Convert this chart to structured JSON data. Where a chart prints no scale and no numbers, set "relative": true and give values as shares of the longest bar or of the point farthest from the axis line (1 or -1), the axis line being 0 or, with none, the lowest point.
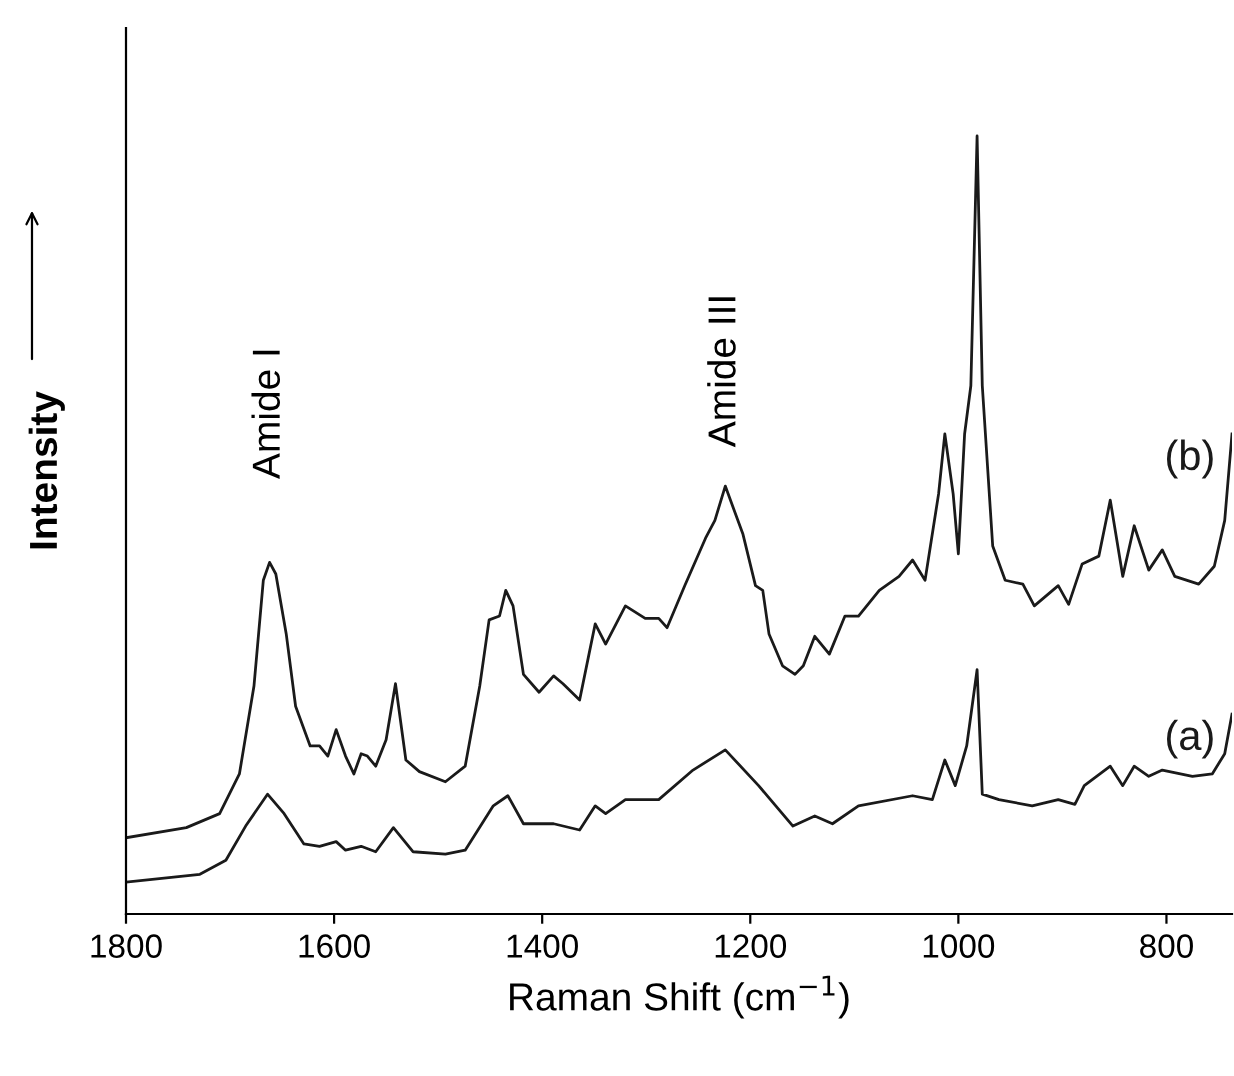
{
  "chart_data": {
    "type": "line",
    "relative": true,
    "xlabel": "Raman Shift (cm$^{−1}$)",
    "ylabel": "Intensity",
    "xlim": [
      1800,
      737
    ],
    "xticks": [
      1800,
      1600,
      1400,
      1200,
      1000,
      800
    ],
    "grid": false,
    "legend": false,
    "marker": "none",
    "line_style": "solid",
    "annotations": [
      {
        "text": "Amide I",
        "x": 1662,
        "y": 0.452
      },
      {
        "text": "Amide III",
        "x": 1224,
        "y": 0.55
      }
    ],
    "series": [
      {
        "name": "(b)",
        "color": "#1a1a1a",
        "x": [
          1800,
          1742,
          1710,
          1691,
          1677,
          1668,
          1662,
          1656,
          1646,
          1637,
          1623,
          1614,
          1606,
          1598,
          1589,
          1581,
          1574,
          1568,
          1560,
          1550,
          1541,
          1531,
          1518,
          1493,
          1474,
          1460,
          1451,
          1441,
          1435,
          1428,
          1418,
          1403,
          1389,
          1380,
          1364,
          1355,
          1349,
          1339,
          1320,
          1301,
          1288,
          1280,
          1263,
          1243,
          1234,
          1224,
          1207,
          1195,
          1188,
          1182,
          1169,
          1157,
          1149,
          1138,
          1124,
          1109,
          1096,
          1076,
          1057,
          1044,
          1032,
          1019,
          1013,
          1005,
          1000,
          994,
          988,
          982,
          977,
          967,
          955,
          938,
          927,
          904,
          894,
          881,
          865,
          854,
          842,
          831,
          817,
          804,
          792,
          769,
          754,
          744,
          737
        ],
        "values": [
          0.098,
          0.111,
          0.129,
          0.18,
          0.293,
          0.429,
          0.452,
          0.437,
          0.36,
          0.267,
          0.216,
          0.216,
          0.203,
          0.237,
          0.203,
          0.18,
          0.206,
          0.203,
          0.19,
          0.224,
          0.296,
          0.198,
          0.183,
          0.17,
          0.19,
          0.293,
          0.378,
          0.383,
          0.416,
          0.396,
          0.308,
          0.285,
          0.306,
          0.296,
          0.275,
          0.334,
          0.373,
          0.347,
          0.396,
          0.38,
          0.38,
          0.368,
          0.422,
          0.483,
          0.506,
          0.55,
          0.488,
          0.422,
          0.416,
          0.36,
          0.319,
          0.308,
          0.319,
          0.357,
          0.334,
          0.383,
          0.383,
          0.416,
          0.434,
          0.455,
          0.429,
          0.54,
          0.617,
          0.54,
          0.463,
          0.617,
          0.679,
          1,
          0.679,
          0.473,
          0.429,
          0.424,
          0.396,
          0.422,
          0.398,
          0.45,
          0.46,
          0.532,
          0.434,
          0.499,
          0.442,
          0.468,
          0.434,
          0.424,
          0.447,
          0.506,
          0.617
        ]
      },
      {
        "name": "(a)",
        "color": "#1a1a1a",
        "x": [
          1800,
          1729,
          1704,
          1685,
          1664,
          1648,
          1629,
          1614,
          1598,
          1589,
          1574,
          1560,
          1543,
          1524,
          1493,
          1474,
          1447,
          1433,
          1418,
          1389,
          1364,
          1349,
          1339,
          1320,
          1288,
          1255,
          1224,
          1192,
          1159,
          1138,
          1121,
          1096,
          1044,
          1025,
          1013,
          1003,
          992,
          982,
          977,
          961,
          929,
          904,
          888,
          879,
          854,
          842,
          831,
          817,
          804,
          775,
          756,
          744,
          737
        ],
        "values": [
          0.041,
          0.051,
          0.069,
          0.113,
          0.154,
          0.129,
          0.09,
          0.087,
          0.093,
          0.082,
          0.087,
          0.08,
          0.111,
          0.08,
          0.077,
          0.082,
          0.139,
          0.152,
          0.116,
          0.116,
          0.108,
          0.139,
          0.129,
          0.147,
          0.147,
          0.185,
          0.211,
          0.165,
          0.113,
          0.126,
          0.116,
          0.139,
          0.152,
          0.147,
          0.198,
          0.165,
          0.216,
          0.314,
          0.154,
          0.147,
          0.139,
          0.147,
          0.141,
          0.165,
          0.19,
          0.165,
          0.19,
          0.177,
          0.185,
          0.177,
          0.18,
          0.206,
          0.257
        ]
      }
    ]
  }
}
